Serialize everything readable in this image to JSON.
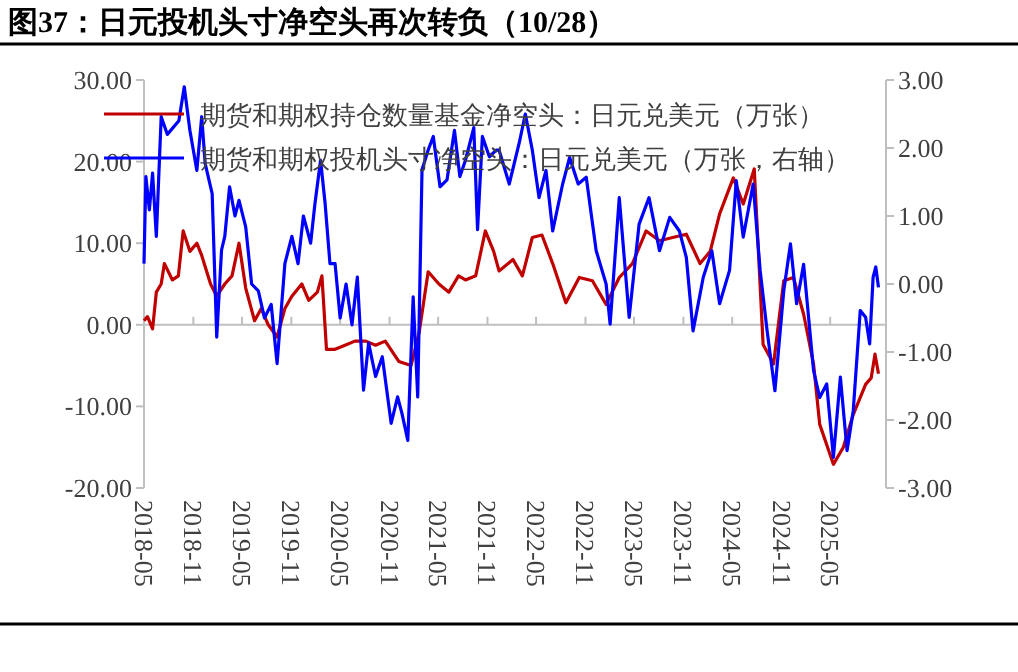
{
  "chart_data": {
    "type": "line",
    "title": "图37：日元投机头寸净空头再次转负（10/28）",
    "legend": "top",
    "xlim": [
      "2018-05-01",
      "2025-11-25"
    ],
    "xticks": [
      "2018-05",
      "2018-11",
      "2019-05",
      "2019-11",
      "2020-05",
      "2020-11",
      "2021-05",
      "2021-11",
      "2022-05",
      "2022-11",
      "2023-05",
      "2023-11",
      "2024-05",
      "2024-11",
      "2025-05"
    ],
    "ylim": [
      -20,
      30
    ],
    "yticks": [
      {
        "value": -20,
        "label": "-20.00"
      },
      {
        "value": -10,
        "label": "-10.00"
      },
      {
        "value": 0,
        "label": "0.00"
      },
      {
        "value": 10,
        "label": "10.00"
      },
      {
        "value": 20,
        "label": "20.00"
      },
      {
        "value": 30,
        "label": "30.00"
      }
    ],
    "y2lim": [
      -3,
      3
    ],
    "y2ticks": [
      {
        "value": -3,
        "label": "-3.00"
      },
      {
        "value": -2,
        "label": "-2.00"
      },
      {
        "value": -1,
        "label": "-1.00"
      },
      {
        "value": 0,
        "label": "0.00"
      },
      {
        "value": 1,
        "label": "1.00"
      },
      {
        "value": 2,
        "label": "2.00"
      },
      {
        "value": 3,
        "label": "3.00"
      }
    ],
    "series": [
      {
        "name": "期货和期权持仓数量基金净空头：日元兑美元（万张）",
        "color": "#c00000",
        "x": [
          "2018-05-01",
          "2018-05-14",
          "2018-06-02",
          "2018-06-16",
          "2018-07-04",
          "2018-07-16",
          "2018-08-15",
          "2018-09-06",
          "2018-09-24",
          "2018-10-19",
          "2018-11-14",
          "2018-12-02",
          "2019-01-04",
          "2019-01-27",
          "2019-02-26",
          "2019-03-25",
          "2019-04-20",
          "2019-05-15",
          "2019-06-17",
          "2019-07-12",
          "2019-08-07",
          "2019-09-09",
          "2019-10-08",
          "2019-11-03",
          "2019-12-10",
          "2020-01-05",
          "2020-02-06",
          "2020-02-23",
          "2020-03-11",
          "2020-04-12",
          "2020-05-19",
          "2020-06-25",
          "2020-08-04",
          "2020-09-10",
          "2020-10-16",
          "2020-12-06",
          "2021-01-20",
          "2021-02-19",
          "2021-03-25",
          "2021-05-04",
          "2021-06-10",
          "2021-07-16",
          "2021-08-11",
          "2021-09-18",
          "2021-10-24",
          "2021-11-24",
          "2021-12-14",
          "2022-02-04",
          "2022-03-11",
          "2022-04-17",
          "2022-05-23",
          "2022-07-02",
          "2022-08-20",
          "2022-10-09",
          "2022-11-27",
          "2023-01-17",
          "2023-03-07",
          "2023-04-25",
          "2023-06-15",
          "2023-08-04",
          "2023-09-22",
          "2023-11-12",
          "2024-01-02",
          "2024-02-09",
          "2024-03-15",
          "2024-05-05",
          "2024-06-11",
          "2024-07-22",
          "2024-08-24",
          "2024-10-02",
          "2024-11-09",
          "2024-12-15",
          "2025-01-22",
          "2025-02-28",
          "2025-03-23",
          "2025-05-13",
          "2025-06-19",
          "2025-07-26",
          "2025-09-10",
          "2025-10-01",
          "2025-10-15",
          "2025-10-28"
        ],
        "values": [
          0.5,
          1,
          -0.5,
          4,
          5,
          7.5,
          5.5,
          6,
          11.5,
          9,
          10,
          8.5,
          5,
          3.5,
          5,
          6,
          10,
          4.5,
          0.5,
          2,
          0,
          -1.5,
          2,
          3.5,
          5,
          3,
          4,
          6,
          -3,
          -3,
          -2.5,
          -2,
          -2,
          -2.5,
          -2,
          -4.5,
          -5,
          -1,
          6.5,
          5,
          4,
          6,
          5.5,
          6,
          11.5,
          9,
          6.6,
          8,
          6,
          10.7,
          11,
          7.5,
          2.7,
          5.8,
          5.4,
          2.5,
          5.8,
          7.5,
          11.5,
          10.3,
          10.7,
          11.1,
          7.5,
          9,
          13.6,
          18,
          14.8,
          19.1,
          -2.4,
          -4.8,
          5.4,
          5.8,
          1.3,
          -4.8,
          -12.2,
          -17.1,
          -15,
          -11,
          -7.3,
          -6.5,
          -3.6,
          -6
        ]
      },
      {
        "name": "期货和期权投机头寸净空头：日元兑美元（万张，右轴）",
        "color": "#0000ff",
        "axis": "y2",
        "x": [
          "2018-05-01",
          "2018-05-08",
          "2018-05-21",
          "2018-06-02",
          "2018-06-16",
          "2018-07-04",
          "2018-07-27",
          "2018-09-08",
          "2018-09-28",
          "2018-10-19",
          "2018-11-14",
          "2018-12-02",
          "2018-12-15",
          "2019-01-10",
          "2019-01-27",
          "2019-02-14",
          "2019-02-26",
          "2019-03-16",
          "2019-04-05",
          "2019-04-20",
          "2019-05-15",
          "2019-06-06",
          "2019-07-01",
          "2019-07-24",
          "2019-08-18",
          "2019-09-09",
          "2019-10-08",
          "2019-11-03",
          "2019-11-26",
          "2019-12-16",
          "2020-01-12",
          "2020-01-28",
          "2020-02-18",
          "2020-03-06",
          "2020-03-24",
          "2020-04-12",
          "2020-05-01",
          "2020-05-23",
          "2020-06-14",
          "2020-07-04",
          "2020-07-27",
          "2020-08-15",
          "2020-09-10",
          "2020-10-05",
          "2020-11-07",
          "2020-12-01",
          "2020-12-17",
          "2021-01-08",
          "2021-01-28",
          "2021-02-14",
          "2021-03-02",
          "2021-03-25",
          "2021-04-13",
          "2021-05-08",
          "2021-06-03",
          "2021-07-01",
          "2021-07-21",
          "2021-08-11",
          "2021-09-11",
          "2021-09-25",
          "2021-10-13",
          "2021-11-08",
          "2021-12-03",
          "2021-12-14",
          "2022-01-21",
          "2022-02-27",
          "2022-03-22",
          "2022-04-17",
          "2022-05-12",
          "2022-06-07",
          "2022-07-02",
          "2022-08-08",
          "2022-09-03",
          "2022-10-05",
          "2022-11-04",
          "2022-12-11",
          "2023-01-17",
          "2023-02-01",
          "2023-03-07",
          "2023-04-13",
          "2023-05-20",
          "2023-06-26",
          "2023-08-04",
          "2023-09-11",
          "2023-10-17",
          "2023-11-12",
          "2023-12-07",
          "2024-01-14",
          "2024-02-15",
          "2024-03-15",
          "2024-04-21",
          "2024-05-16",
          "2024-06-11",
          "2024-07-18",
          "2024-08-13",
          "2024-09-08",
          "2024-10-07",
          "2024-11-09",
          "2024-12-04",
          "2024-12-27",
          "2025-01-22",
          "2025-02-28",
          "2025-03-23",
          "2025-04-18",
          "2025-05-13",
          "2025-06-08",
          "2025-07-03",
          "2025-07-26",
          "2025-08-21",
          "2025-09-10",
          "2025-09-25",
          "2025-10-08",
          "2025-10-18",
          "2025-10-28"
        ],
        "values": [
          0.3,
          1.58,
          1.09,
          1.63,
          0.7,
          2.46,
          2.2,
          2.4,
          2.9,
          2.26,
          1.67,
          2.46,
          1.77,
          1.33,
          -0.78,
          0.5,
          0.7,
          1.43,
          1.0,
          1.23,
          0.84,
          0,
          -0.1,
          -0.5,
          -0.3,
          -1.17,
          0.3,
          0.7,
          0.3,
          1.0,
          0.6,
          1.18,
          1.82,
          1.18,
          0.3,
          0.3,
          -0.5,
          0,
          -0.6,
          0.1,
          -1.56,
          -0.87,
          -1.36,
          -1.07,
          -2.05,
          -1.66,
          -1.9,
          -2.3,
          -0.19,
          -1.66,
          1.68,
          1.97,
          2.17,
          1.43,
          1.53,
          2.26,
          1.58,
          1.82,
          2.3,
          0.8,
          2.17,
          1.87,
          1.97,
          1.97,
          1.47,
          2.07,
          2.5,
          1.97,
          1.27,
          1.67,
          0.78,
          1.47,
          1.86,
          1.47,
          1.57,
          0.49,
          0,
          -0.59,
          1.27,
          -0.49,
          0.88,
          1.27,
          0.49,
          0.98,
          0.78,
          0.39,
          -0.69,
          0.1,
          0.49,
          -0.29,
          0.2,
          1.52,
          0.69,
          1.47,
          0.2,
          -0.69,
          -1.57,
          -0.1,
          0.59,
          -0.29,
          0.29,
          -1.27,
          -1.67,
          -1.47,
          -2.55,
          -1.37,
          -2.45,
          -1.86,
          -0.39,
          -0.49,
          -0.88,
          0.1,
          0.25,
          -0.05
        ]
      }
    ]
  }
}
